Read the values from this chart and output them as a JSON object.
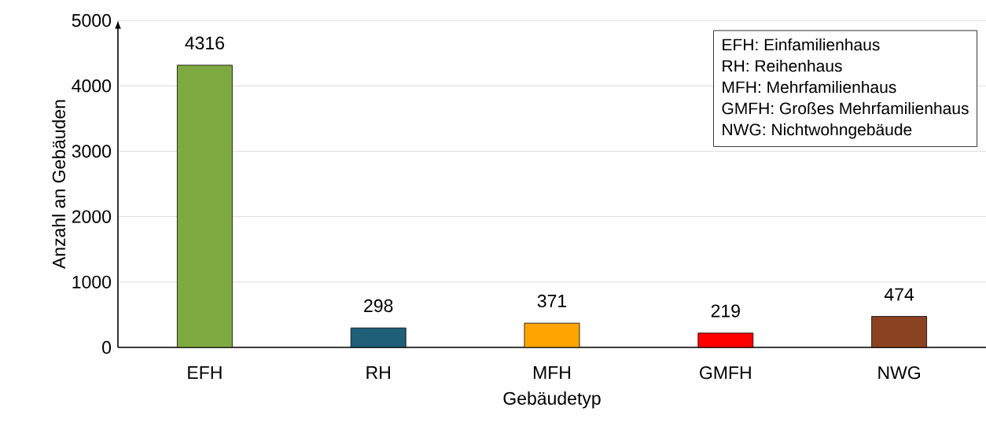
{
  "chart_data": {
    "type": "bar",
    "xlabel": "Gebäudetyp",
    "ylabel": "Anzahl an Gebäuden",
    "categories": [
      "EFH",
      "RH",
      "MFH",
      "GMFH",
      "NWG"
    ],
    "values": [
      4316,
      298,
      371,
      219,
      474
    ],
    "colors": [
      "#7ea940",
      "#1f5f78",
      "#ffa500",
      "#ff0000",
      "#8b4220"
    ],
    "ylim": [
      0,
      5000
    ],
    "yticks": [
      0,
      1000,
      2000,
      3000,
      4000,
      5000
    ],
    "grid": "y",
    "data_labels": true,
    "annotations": [
      "EFH: Einfamilienhaus",
      "RH: Reihenhaus",
      "MFH: Mehrfamilienhaus",
      "GMFH: Großes Mehrfamilienhaus",
      "NWG: Nichtwohngebäude"
    ]
  }
}
